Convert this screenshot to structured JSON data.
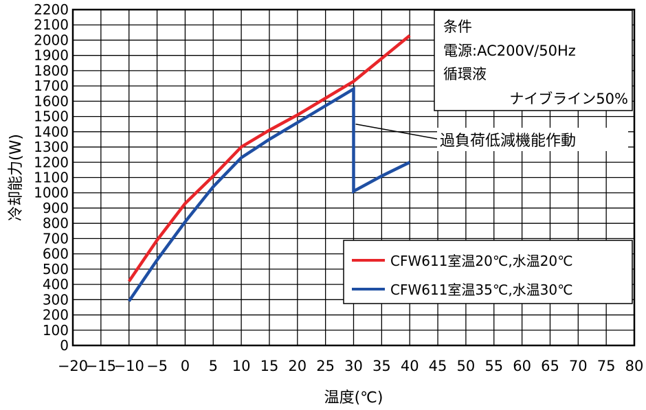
{
  "chart_data": {
    "type": "line",
    "xlabel": "温度(℃)",
    "ylabel": "冷却能力(W)",
    "xlim": [
      -20,
      80
    ],
    "ylim": [
      0,
      2200
    ],
    "x_ticks": [
      -20,
      -15,
      -10,
      -5,
      0,
      5,
      10,
      15,
      20,
      25,
      30,
      35,
      40,
      45,
      50,
      55,
      60,
      65,
      70,
      75,
      80
    ],
    "y_ticks": [
      0,
      100,
      200,
      300,
      400,
      500,
      600,
      700,
      800,
      900,
      1000,
      1100,
      1200,
      1300,
      1400,
      1500,
      1600,
      1700,
      1800,
      1900,
      2000,
      2100,
      2200
    ],
    "grid": true,
    "series": [
      {
        "name": "CFW611室温20℃,水温20℃",
        "color": "#e8262a",
        "x": [
          -10,
          -5,
          0,
          5,
          10,
          15,
          20,
          25,
          30,
          35,
          40
        ],
        "y": [
          420,
          690,
          930,
          1110,
          1300,
          1410,
          1510,
          1620,
          1730,
          1880,
          2030
        ]
      },
      {
        "name": "CFW611室温35℃,水温30℃",
        "color": "#1f4fa3",
        "x": [
          -10,
          -5,
          0,
          5,
          10,
          15,
          20,
          25,
          30,
          30,
          35,
          40
        ],
        "y": [
          290,
          560,
          810,
          1040,
          1230,
          1350,
          1460,
          1570,
          1680,
          1010,
          1110,
          1200
        ]
      }
    ],
    "legend": {
      "placement": "bottom-right"
    },
    "conditions": {
      "lines": [
        "条件",
        "電源:AC200V/50Hz",
        "循環液",
        "ナイブライン50%"
      ],
      "placement": "top-right"
    },
    "annotation": {
      "text": "過負荷低減機能作動",
      "points_to": {
        "x": 30,
        "y": 1450
      }
    }
  }
}
